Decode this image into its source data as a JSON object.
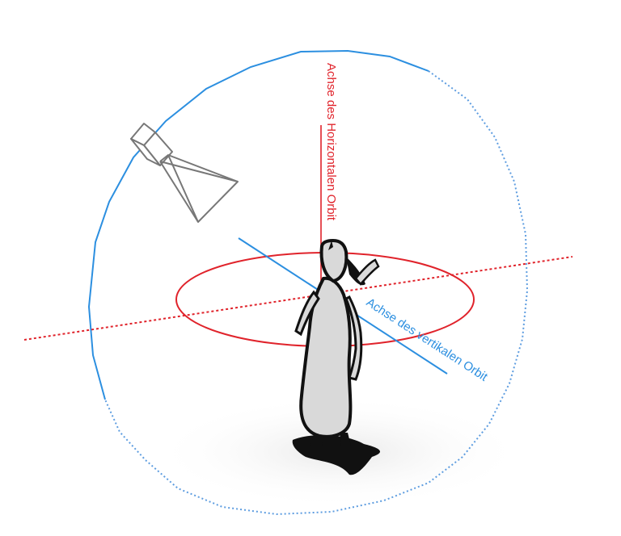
{
  "labels": {
    "horizontal_orbit_axis": "Achse des Horizontalen Orbit",
    "vertical_orbit_axis": "Achse des vertikalen Orbit"
  },
  "colors": {
    "horizontal_orbit": "#e0232b",
    "vertical_orbit": "#2c8fe0",
    "camera": "#777777",
    "figure_outline": "#111111",
    "figure_fill": "#d9d9d9"
  },
  "icons": {
    "camera": "camera-icon",
    "figure": "character-figure-icon"
  }
}
